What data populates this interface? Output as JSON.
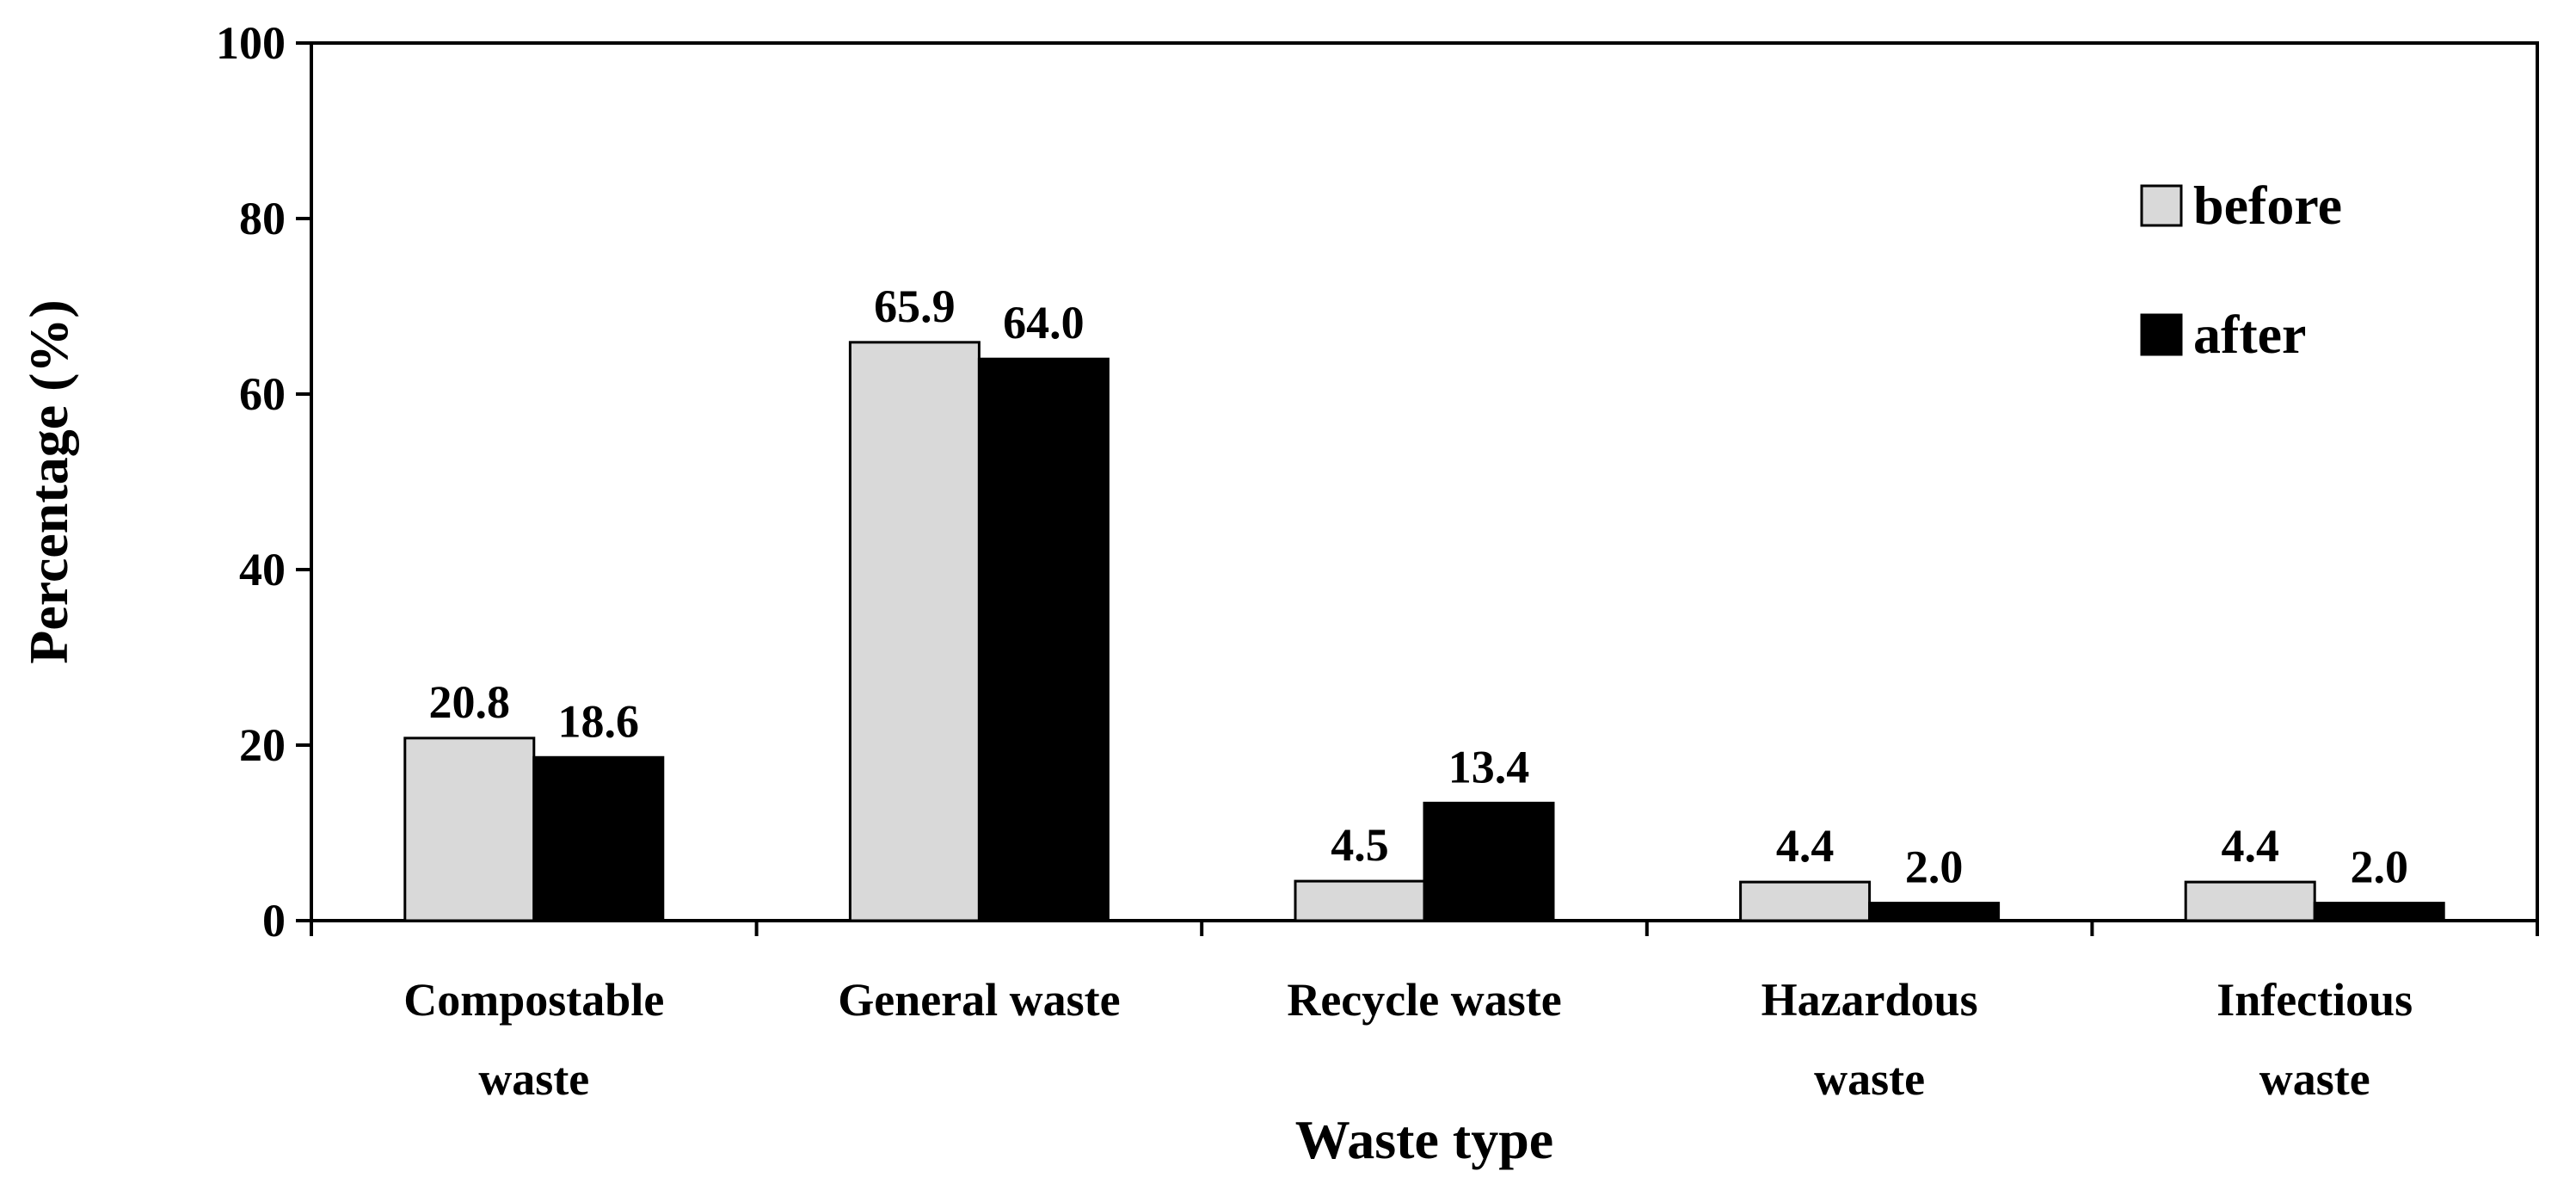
{
  "chart_data": {
    "type": "bar",
    "title": "",
    "xlabel": "Waste type",
    "ylabel": "Percentage (%)",
    "ylim": [
      0,
      100
    ],
    "yticks": [
      0,
      20,
      40,
      60,
      80,
      100
    ],
    "categories": [
      [
        "Compostable",
        "waste"
      ],
      [
        "General waste"
      ],
      [
        "Recycle waste"
      ],
      [
        "Hazardous",
        "waste"
      ],
      [
        "Infectious",
        "waste"
      ]
    ],
    "series": [
      {
        "name": "before",
        "color": "#d9d9d9",
        "values": [
          20.8,
          65.9,
          4.5,
          4.4,
          4.4
        ]
      },
      {
        "name": "after",
        "color": "#000000",
        "values": [
          18.6,
          64.0,
          13.4,
          2.0,
          2.0
        ]
      }
    ],
    "data_labels": [
      [
        "20.8",
        "65.9",
        "4.5",
        "4.4",
        "4.4"
      ],
      [
        "18.6",
        "64.0",
        "13.4",
        "2.0",
        "2.0"
      ]
    ],
    "legend": "top-right",
    "grid": false
  }
}
